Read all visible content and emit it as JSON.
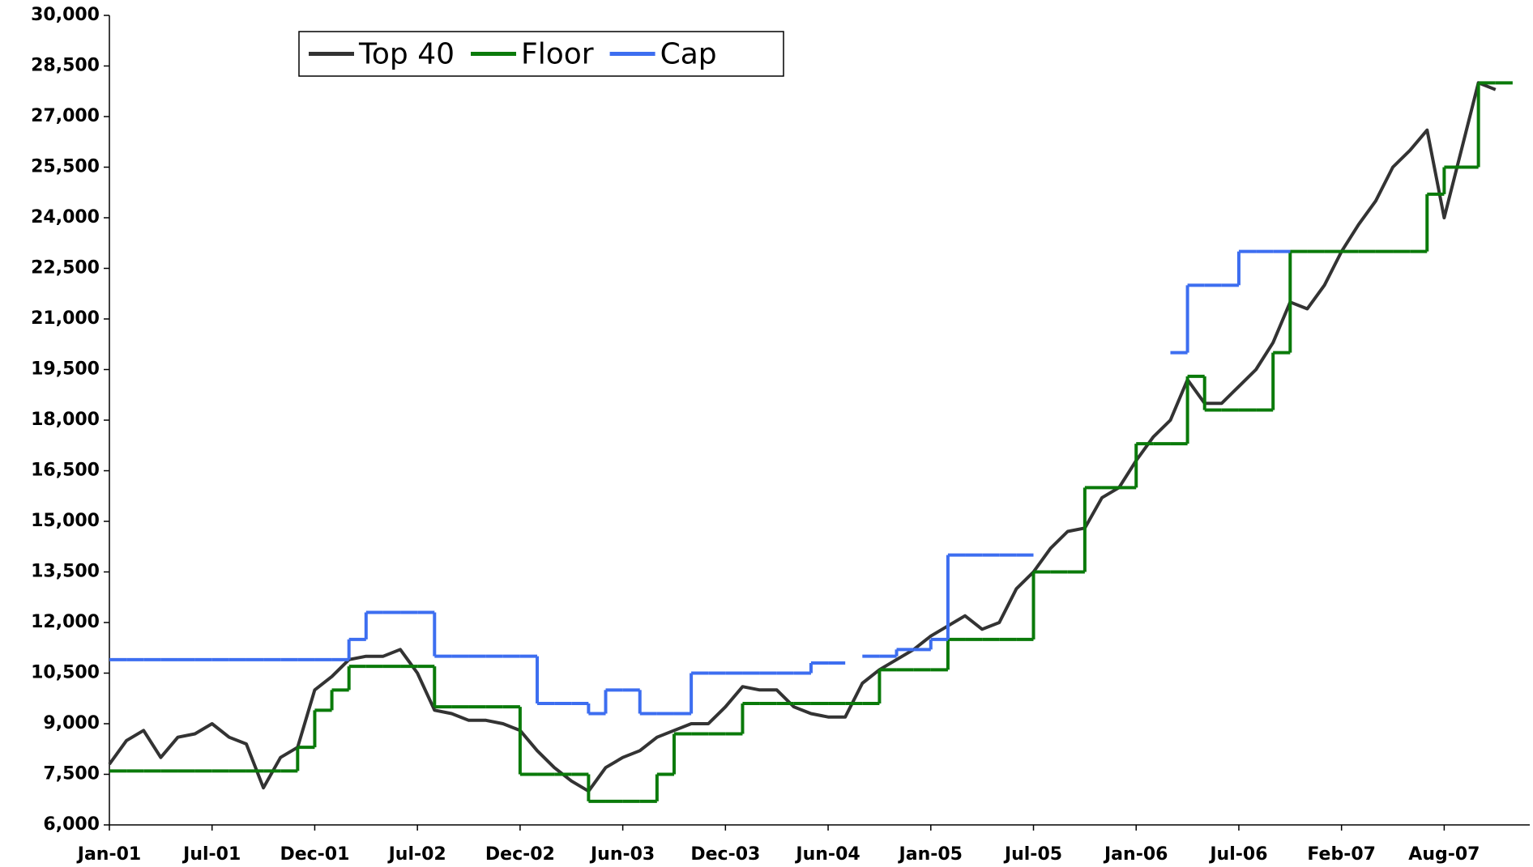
{
  "chart_data": {
    "type": "line",
    "categories": [
      "Jan-01",
      null,
      null,
      null,
      null,
      null,
      "Jul-01",
      null,
      null,
      null,
      null,
      null,
      "Dec-01",
      null,
      null,
      null,
      null,
      null,
      "Jul-02",
      null,
      null,
      null,
      null,
      null,
      "Dec-02",
      null,
      null,
      null,
      null,
      null,
      "Jun-03",
      null,
      null,
      null,
      null,
      null,
      "Dec-03",
      null,
      null,
      null,
      null,
      null,
      "Jun-04",
      null,
      null,
      null,
      null,
      null,
      "Jan-05",
      null,
      null,
      null,
      null,
      null,
      "Jul-05",
      null,
      null,
      null,
      null,
      null,
      "Jan-06",
      null,
      null,
      null,
      null,
      null,
      "Jul-06",
      null,
      null,
      null,
      null,
      null,
      "Feb-07",
      null,
      null,
      null,
      null,
      null,
      "Aug-07",
      null,
      null,
      null,
      null,
      null
    ],
    "series": [
      {
        "name": "Top 40",
        "color": "#333333",
        "values": [
          7800,
          8500,
          8800,
          8000,
          8600,
          8700,
          9000,
          8600,
          8400,
          7100,
          8000,
          8300,
          10000,
          10400,
          10900,
          11000,
          11000,
          11200,
          10500,
          9400,
          9300,
          9100,
          9100,
          9000,
          8800,
          8200,
          7700,
          7300,
          7000,
          7700,
          8000,
          8200,
          8600,
          8800,
          9000,
          9000,
          9500,
          10100,
          10000,
          10000,
          9500,
          9300,
          9200,
          9200,
          10200,
          10600,
          10900,
          11200,
          11600,
          11900,
          12200,
          11800,
          12000,
          13000,
          13500,
          14200,
          14700,
          14800,
          15700,
          16000,
          16800,
          17500,
          18000,
          19200,
          18500,
          18500,
          19000,
          19500,
          20300,
          21500,
          21300,
          22000,
          23000,
          23800,
          24500,
          25500,
          26000,
          26600,
          24000,
          26000,
          28000,
          27800,
          null,
          null
        ]
      },
      {
        "name": "Floor",
        "color": "#0a7a0a",
        "step": true,
        "values": [
          7600,
          7600,
          7600,
          7600,
          7600,
          7600,
          7600,
          7600,
          7600,
          7600,
          7600,
          8300,
          9400,
          10000,
          10700,
          10700,
          10700,
          10700,
          10700,
          9500,
          9500,
          9500,
          9500,
          9500,
          7500,
          7500,
          7500,
          7500,
          6700,
          6700,
          6700,
          6700,
          7500,
          8700,
          8700,
          8700,
          8700,
          9600,
          9600,
          9600,
          9600,
          9600,
          9600,
          9600,
          9600,
          10600,
          10600,
          10600,
          10600,
          11500,
          11500,
          11500,
          11500,
          11500,
          13500,
          13500,
          13500,
          16000,
          16000,
          16000,
          17300,
          17300,
          17300,
          19300,
          18300,
          18300,
          18300,
          18300,
          20000,
          23000,
          23000,
          23000,
          23000,
          23000,
          23000,
          23000,
          23000,
          24700,
          25500,
          25500,
          28000,
          28000,
          null,
          null
        ]
      },
      {
        "name": "Cap",
        "color": "#3d6ef0",
        "step": true,
        "values": [
          10900,
          10900,
          10900,
          10900,
          10900,
          10900,
          10900,
          10900,
          10900,
          10900,
          10900,
          10900,
          10900,
          10900,
          11500,
          12300,
          12300,
          12300,
          12300,
          11000,
          11000,
          11000,
          11000,
          11000,
          11000,
          9600,
          9600,
          9600,
          9300,
          10000,
          10000,
          9300,
          9300,
          9300,
          10500,
          10500,
          10500,
          10500,
          10500,
          10500,
          10500,
          10800,
          10800,
          null,
          11000,
          11000,
          11200,
          11200,
          11500,
          14000,
          14000,
          14000,
          14000,
          14000,
          null,
          null,
          null,
          null,
          null,
          null,
          null,
          null,
          20000,
          22000,
          22000,
          22000,
          23000,
          23000,
          23000,
          null,
          null,
          null,
          null,
          null,
          null,
          null,
          null,
          null,
          null,
          null,
          null,
          null,
          null,
          null
        ]
      }
    ],
    "ylim": [
      6000,
      30000
    ],
    "yticks": [
      {
        "value": 6000,
        "label": "6,000"
      },
      {
        "value": 7500,
        "label": "7,500"
      },
      {
        "value": 9000,
        "label": "9,000"
      },
      {
        "value": 10500,
        "label": "10,500"
      },
      {
        "value": 12000,
        "label": "12,000"
      },
      {
        "value": 13500,
        "label": "13,500"
      },
      {
        "value": 15000,
        "label": "15,000"
      },
      {
        "value": 16500,
        "label": "16,500"
      },
      {
        "value": 18000,
        "label": "18,000"
      },
      {
        "value": 19500,
        "label": "19,500"
      },
      {
        "value": 21000,
        "label": "21,000"
      },
      {
        "value": 22500,
        "label": "22,500"
      },
      {
        "value": 24000,
        "label": "24,000"
      },
      {
        "value": 25500,
        "label": "25,500"
      },
      {
        "value": 27000,
        "label": "27,000"
      },
      {
        "value": 28500,
        "label": "28,500"
      },
      {
        "value": 30000,
        "label": "30,000"
      }
    ],
    "grid": false,
    "legend": "top-left"
  }
}
